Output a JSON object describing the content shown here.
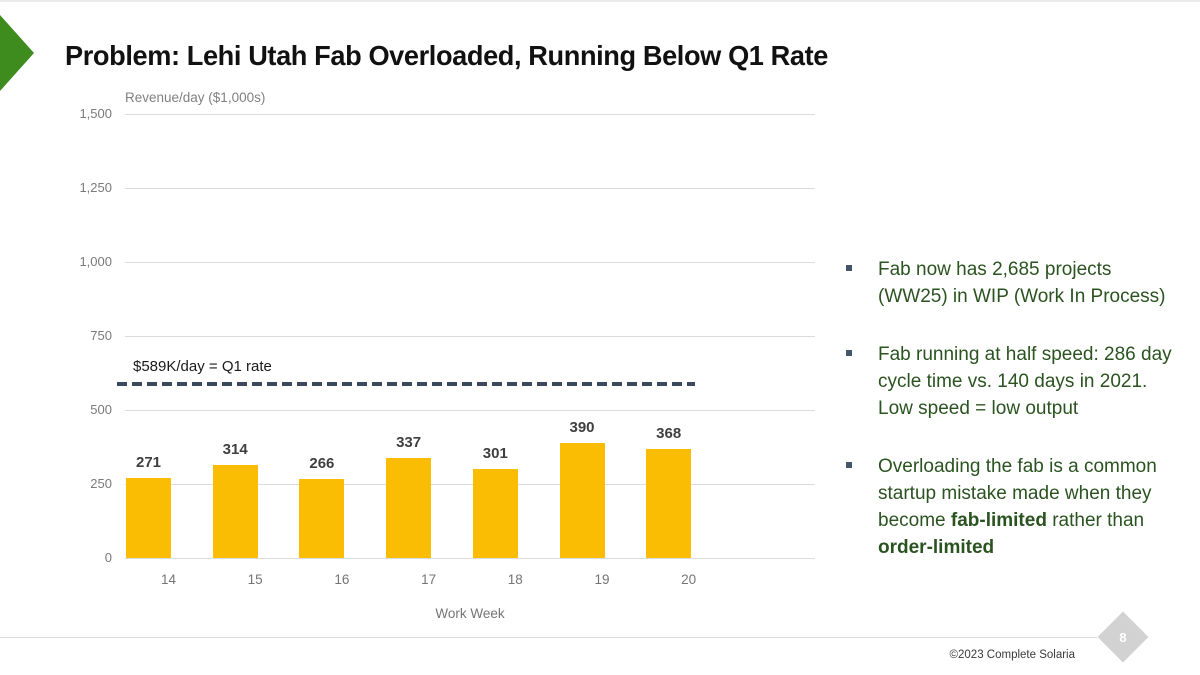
{
  "slide": {
    "title": "Problem: Lehi Utah Fab Overloaded, Running Below Q1 Rate",
    "page_number": "8",
    "copyright": "©2023 Complete Solaria"
  },
  "colors": {
    "accent_green": "#3e8c1e",
    "bullet_text_green": "#2a5320",
    "bar_gold": "#fbbc04",
    "reference_line_slate": "#3a4a5c",
    "axis_gray": "#7a7a7a"
  },
  "chart_data": {
    "type": "bar",
    "title": "Revenue/day ($1,000s)",
    "categories": [
      "14",
      "15",
      "16",
      "17",
      "18",
      "19",
      "20"
    ],
    "values": [
      271,
      314,
      266,
      337,
      301,
      390,
      368
    ],
    "value_labels": [
      "271",
      "314",
      "266",
      "337",
      "301",
      "390",
      "368"
    ],
    "xlabel": "Work Week",
    "ylabel": "Revenue/day ($1,000s)",
    "ylim": [
      0,
      1500
    ],
    "ytick_labels": [
      "1,500",
      "1,250",
      "1,000",
      "750",
      "500",
      "250",
      "0"
    ],
    "ytick_values": [
      1500,
      1250,
      1000,
      750,
      500,
      250,
      0
    ],
    "grid": true,
    "legend_position": "none",
    "bar_color": "#fbbc04",
    "reference_line": {
      "value": 589,
      "label": "$589K/day = Q1 rate",
      "color": "#3a4a5c",
      "style": "dashed"
    }
  },
  "bullets": [
    {
      "segments": [
        {
          "text": "Fab now has 2,685 projects\n(WW25) in WIP (Work In Process)",
          "bold": false
        }
      ]
    },
    {
      "segments": [
        {
          "text": "Fab running at half speed: 286 day\ncycle time vs. 140 days in 2021.\nLow speed = low output",
          "bold": false
        }
      ]
    },
    {
      "segments": [
        {
          "text": "Overloading the fab is a common\nstartup mistake made when they\nbecome  ",
          "bold": false
        },
        {
          "text": "fab-limited",
          "bold": true
        },
        {
          "text": " rather than\n",
          "bold": false
        },
        {
          "text": "order-limited",
          "bold": true
        }
      ]
    }
  ]
}
